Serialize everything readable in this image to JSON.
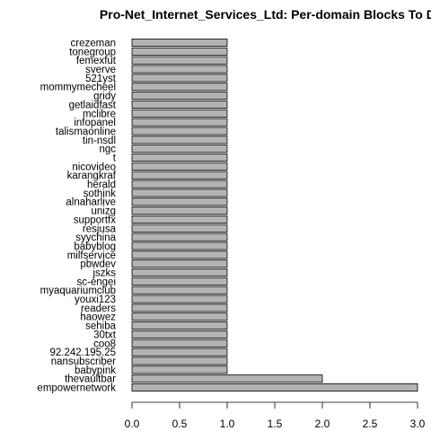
{
  "chart_data": {
    "type": "bar",
    "orientation": "horizontal",
    "title": "Pro-Net_Internet_Services_Ltd: Per-domain Blocks To Date",
    "xlabel": "",
    "ylabel": "",
    "xlim": [
      0,
      3
    ],
    "xticks": [
      0.0,
      0.5,
      1.0,
      1.5,
      2.0,
      2.5,
      3.0
    ],
    "xtick_labels": [
      "0.0",
      "0.5",
      "1.0",
      "1.5",
      "2.0",
      "2.5",
      "3.0"
    ],
    "bar_color": "#b3b3b3",
    "categories": [
      "crezeman",
      "tonegroup",
      "femexfut",
      "sverve",
      "521yst",
      "mommymecheel",
      "gridy",
      "getlaidfast",
      "mclibre",
      "infopanel",
      "talismaonline",
      "tin-nsdl",
      "ngc",
      "t",
      "nicovideo",
      "karangkraf",
      "herald",
      "sothink",
      "alnaharlive",
      "unizg",
      "supportfx",
      "resjusa",
      "syychina",
      "babyblog",
      "milfservice",
      "pbwdev",
      "jszks",
      "sc-engei",
      "myaquariumclub",
      "youxi123",
      "readers",
      "haowez",
      "sehiba",
      "30txt",
      "coo8",
      "92.242.195.25",
      "nansubscriber",
      "babypink",
      "thevaultbar",
      "empowernetwork"
    ],
    "values": [
      1,
      1,
      1,
      1,
      1,
      1,
      1,
      1,
      1,
      1,
      1,
      1,
      1,
      1,
      1,
      1,
      1,
      1,
      1,
      1,
      1,
      1,
      1,
      1,
      1,
      1,
      1,
      1,
      1,
      1,
      1,
      1,
      1,
      1,
      1,
      1,
      1,
      1,
      2,
      3
    ]
  }
}
